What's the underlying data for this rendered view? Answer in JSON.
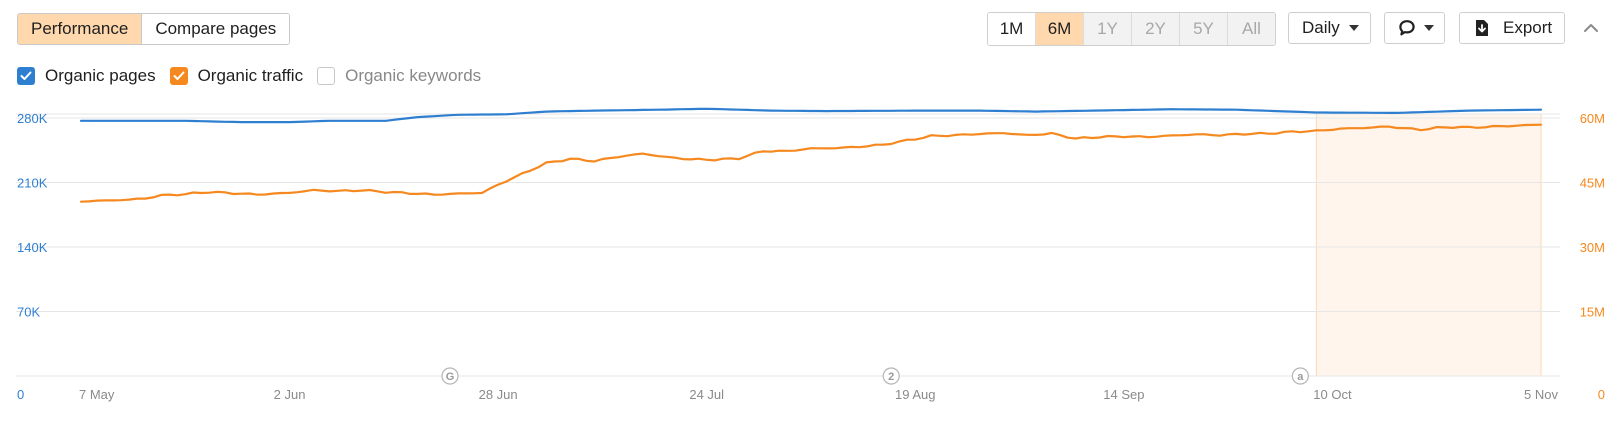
{
  "view_toggle": {
    "performance_label": "Performance",
    "compare_label": "Compare pages"
  },
  "periods": [
    {
      "label": "1M",
      "state": "normal"
    },
    {
      "label": "6M",
      "state": "active"
    },
    {
      "label": "1Y",
      "state": "disabled"
    },
    {
      "label": "2Y",
      "state": "disabled"
    },
    {
      "label": "5Y",
      "state": "disabled"
    },
    {
      "label": "All",
      "state": "disabled"
    }
  ],
  "granularity_label": "Daily",
  "comment_icon": "speech-bubble-icon",
  "export_label": "Export",
  "export_icon": "download-icon",
  "collapse_icon": "chevron-up-icon",
  "legend": {
    "organic_pages": {
      "label": "Organic pages",
      "checked": true,
      "color": "#2f7fd1"
    },
    "organic_traffic": {
      "label": "Organic traffic",
      "checked": true,
      "color": "#f5891f"
    },
    "organic_keywords": {
      "label": "Organic keywords",
      "checked": false
    }
  },
  "chart_data": {
    "type": "line",
    "x_range": [
      "2023-05-07",
      "2023-11-05"
    ],
    "x_tick_labels": [
      "7 May",
      "2 Jun",
      "28 Jun",
      "24 Jul",
      "19 Aug",
      "14 Sep",
      "10 Oct",
      "5 Nov"
    ],
    "y_left": {
      "ticks": [
        "0",
        "70K",
        "140K",
        "210K",
        "280K"
      ],
      "min": 0,
      "max": 280000,
      "color": "#2f7fd1"
    },
    "y_right": {
      "ticks": [
        "0",
        "15M",
        "30M",
        "45M",
        "60M"
      ],
      "min": 0,
      "max": 60000000,
      "color": "#f5891f"
    },
    "grid": true,
    "highlight_range": [
      "2023-10-08",
      "2023-11-05"
    ],
    "annotations": [
      {
        "date": "2023-06-22",
        "label": "G"
      },
      {
        "date": "2023-08-16",
        "label": "2"
      },
      {
        "date": "2023-10-06",
        "label": "a"
      }
    ],
    "series": [
      {
        "name": "Organic pages",
        "axis": "left",
        "color": "#2f7fd1",
        "points": [
          [
            "2023-05-07",
            277000
          ],
          [
            "2023-05-20",
            277000
          ],
          [
            "2023-05-27",
            275500
          ],
          [
            "2023-06-02",
            275500
          ],
          [
            "2023-06-07",
            277000
          ],
          [
            "2023-06-14",
            277000
          ],
          [
            "2023-06-18",
            281000
          ],
          [
            "2023-06-23",
            283500
          ],
          [
            "2023-06-29",
            284000
          ],
          [
            "2023-07-04",
            287000
          ],
          [
            "2023-07-10",
            288000
          ],
          [
            "2023-07-18",
            289000
          ],
          [
            "2023-07-24",
            290000
          ],
          [
            "2023-08-01",
            288000
          ],
          [
            "2023-08-08",
            287500
          ],
          [
            "2023-08-19",
            288000
          ],
          [
            "2023-08-27",
            288000
          ],
          [
            "2023-09-03",
            287000
          ],
          [
            "2023-09-10",
            288000
          ],
          [
            "2023-09-20",
            289500
          ],
          [
            "2023-09-28",
            289000
          ],
          [
            "2023-10-08",
            286000
          ],
          [
            "2023-10-18",
            285500
          ],
          [
            "2023-10-27",
            288000
          ],
          [
            "2023-11-05",
            289000
          ]
        ]
      },
      {
        "name": "Organic traffic",
        "axis": "right",
        "color": "#f5891f",
        "points": [
          [
            "2023-05-07",
            40600000
          ],
          [
            "2023-05-10",
            40800000
          ],
          [
            "2023-05-13",
            41000000
          ],
          [
            "2023-05-15",
            41300000
          ],
          [
            "2023-05-17",
            42000000
          ],
          [
            "2023-05-20",
            42300000
          ],
          [
            "2023-05-23",
            42800000
          ],
          [
            "2023-05-26",
            42500000
          ],
          [
            "2023-05-29",
            42200000
          ],
          [
            "2023-06-02",
            42600000
          ],
          [
            "2023-06-05",
            43200000
          ],
          [
            "2023-06-08",
            43000000
          ],
          [
            "2023-06-11",
            43200000
          ],
          [
            "2023-06-14",
            42800000
          ],
          [
            "2023-06-17",
            42500000
          ],
          [
            "2023-06-20",
            42200000
          ],
          [
            "2023-06-23",
            42400000
          ],
          [
            "2023-06-26",
            42600000
          ],
          [
            "2023-06-28",
            44500000
          ],
          [
            "2023-07-01",
            47000000
          ],
          [
            "2023-07-04",
            49500000
          ],
          [
            "2023-07-07",
            50500000
          ],
          [
            "2023-07-10",
            50000000
          ],
          [
            "2023-07-13",
            51000000
          ],
          [
            "2023-07-16",
            51700000
          ],
          [
            "2023-07-19",
            50900000
          ],
          [
            "2023-07-22",
            50400000
          ],
          [
            "2023-07-25",
            50300000
          ],
          [
            "2023-07-28",
            50600000
          ],
          [
            "2023-07-31",
            52300000
          ],
          [
            "2023-08-03",
            52300000
          ],
          [
            "2023-08-06",
            52900000
          ],
          [
            "2023-08-09",
            53000000
          ],
          [
            "2023-08-12",
            53300000
          ],
          [
            "2023-08-15",
            53800000
          ],
          [
            "2023-08-18",
            54800000
          ],
          [
            "2023-08-21",
            55800000
          ],
          [
            "2023-08-24",
            56000000
          ],
          [
            "2023-08-27",
            56300000
          ],
          [
            "2023-08-30",
            56500000
          ],
          [
            "2023-09-02",
            56000000
          ],
          [
            "2023-09-05",
            56400000
          ],
          [
            "2023-09-08",
            55200000
          ],
          [
            "2023-09-11",
            55600000
          ],
          [
            "2023-09-14",
            55700000
          ],
          [
            "2023-09-17",
            55600000
          ],
          [
            "2023-09-20",
            55900000
          ],
          [
            "2023-09-23",
            56200000
          ],
          [
            "2023-09-26",
            56000000
          ],
          [
            "2023-09-29",
            56300000
          ],
          [
            "2023-10-02",
            56400000
          ],
          [
            "2023-10-05",
            56800000
          ],
          [
            "2023-10-08",
            57000000
          ],
          [
            "2023-10-11",
            57500000
          ],
          [
            "2023-10-14",
            57700000
          ],
          [
            "2023-10-17",
            58000000
          ],
          [
            "2023-10-19",
            57600000
          ],
          [
            "2023-10-21",
            57300000
          ],
          [
            "2023-10-23",
            57700000
          ],
          [
            "2023-10-25",
            57900000
          ],
          [
            "2023-10-27",
            57800000
          ],
          [
            "2023-10-29",
            57900000
          ],
          [
            "2023-10-31",
            58100000
          ],
          [
            "2023-11-02",
            58200000
          ],
          [
            "2023-11-05",
            58500000
          ]
        ]
      }
    ]
  }
}
